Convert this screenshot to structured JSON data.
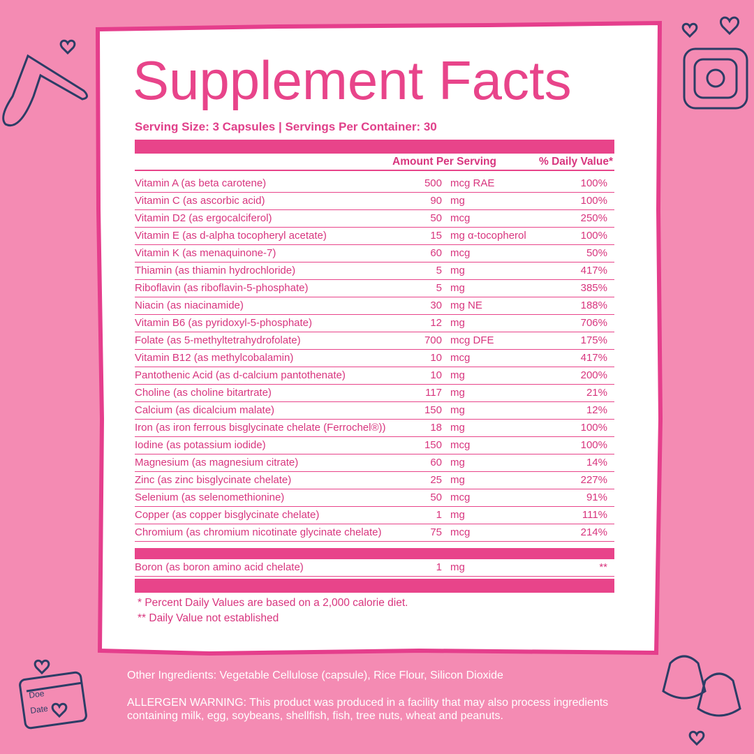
{
  "header": {
    "title": "Supplement Facts",
    "serving": "Serving Size: 3 Capsules | Servings Per Container: 30"
  },
  "table": {
    "columns": [
      "Amount Per Serving",
      "% Daily Value*"
    ],
    "rows": [
      [
        "Vitamin A (as beta carotene)",
        500,
        "mcg RAE",
        "100%"
      ],
      [
        "Vitamin C (as ascorbic acid)",
        90,
        "mg",
        "100%"
      ],
      [
        "Vitamin D2 (as ergocalciferol)",
        50,
        "mcg",
        "250%"
      ],
      [
        "Vitamin E (as d-alpha tocopheryl acetate)",
        15,
        "mg α-tocopherol",
        "100%"
      ],
      [
        "Vitamin K (as menaquinone-7)",
        60,
        "mcg",
        "50%"
      ],
      [
        "Thiamin (as thiamin hydrochloride)",
        5,
        "mg",
        "417%"
      ],
      [
        "Riboflavin (as riboflavin-5-phosphate)",
        5,
        "mg",
        "385%"
      ],
      [
        "Niacin (as niacinamide)",
        30,
        "mg NE",
        "188%"
      ],
      [
        "Vitamin B6 (as pyridoxyl-5-phosphate)",
        12,
        "mg",
        "706%"
      ],
      [
        "Folate (as 5-methyltetrahydrofolate)",
        700,
        "mcg DFE",
        "175%"
      ],
      [
        "Vitamin B12 (as methylcobalamin)",
        10,
        "mcg",
        "417%"
      ],
      [
        "Pantothenic Acid (as d-calcium pantothenate)",
        10,
        "mg",
        "200%"
      ],
      [
        "Choline (as choline bitartrate)",
        117,
        "mg",
        "21%"
      ],
      [
        "Calcium (as dicalcium malate)",
        150,
        "mg",
        "12%"
      ],
      [
        "Iron (as iron ferrous bisglycinate chelate (Ferrochel®))",
        18,
        "mg",
        "100%"
      ],
      [
        "Iodine (as potassium iodide)",
        150,
        "mcg",
        "100%"
      ],
      [
        "Magnesium (as magnesium citrate)",
        60,
        "mg",
        "14%"
      ],
      [
        "Zinc (as zinc bisglycinate chelate)",
        25,
        "mg",
        "227%"
      ],
      [
        "Selenium (as selenomethionine)",
        50,
        "mcg",
        "91%"
      ],
      [
        "Copper (as copper bisglycinate chelate)",
        1,
        "mg",
        "111%"
      ],
      [
        "Chromium (as chromium nicotinate glycinate chelate)",
        75,
        "mcg",
        "214%"
      ]
    ],
    "extra_rows": [
      [
        "Boron (as boron amino acid chelate)",
        1,
        "mg",
        "**"
      ]
    ]
  },
  "footnotes": [
    "* Percent Daily Values are based on a 2,000 calorie diet.",
    "** Daily Value not established"
  ],
  "other_ingredients": "Other Ingredients: Vegetable Cellulose (capsule), Rice Flour, Silicon Dioxide",
  "allergen_warning": "ALLERGEN WARNING: This product was produced in a facility that may also process ingredients containing milk, egg, soybeans, shellfish, fish, tree nuts, wheat and peanuts.",
  "calendar_icon": [
    "Doe",
    "Date"
  ]
}
